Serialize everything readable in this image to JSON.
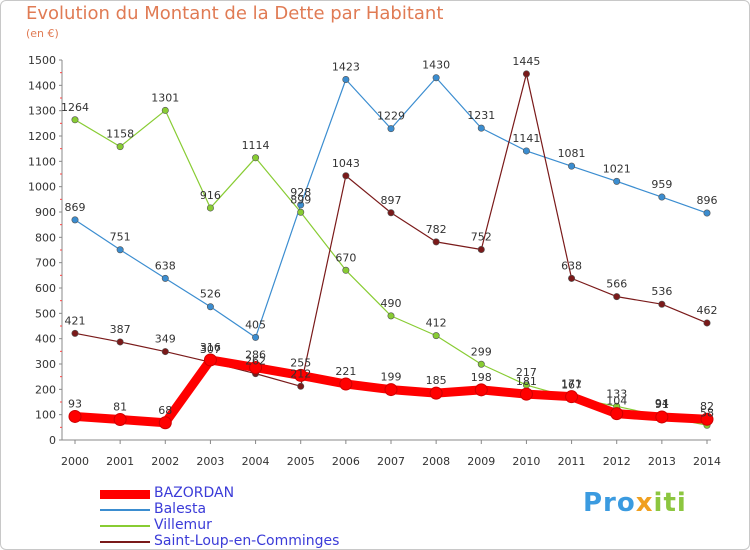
{
  "title": "Evolution du Montant de la Dette par Habitant",
  "subtitle": "(en €)",
  "logo": {
    "part1": "Pro",
    "part2": "x",
    "part3": "iti"
  },
  "chart_data": {
    "type": "line",
    "x": [
      "2000",
      "2001",
      "2002",
      "2003",
      "2004",
      "2005",
      "2006",
      "2007",
      "2008",
      "2009",
      "2010",
      "2011",
      "2012",
      "2013",
      "2014"
    ],
    "ylim": [
      0,
      1500
    ],
    "yticks": [
      0,
      100,
      200,
      300,
      400,
      500,
      600,
      700,
      800,
      900,
      1000,
      1100,
      1200,
      1300,
      1400,
      1500
    ],
    "grid": false,
    "legend_position": "bottom-left",
    "series": [
      {
        "name": "BAZORDAN",
        "color": "#ff0000",
        "values": [
          93,
          81,
          68,
          316,
          286,
          255,
          221,
          199,
          185,
          198,
          181,
          171,
          104,
          91,
          82
        ]
      },
      {
        "name": "Balesta",
        "color": "#3b8dd0",
        "values": [
          869,
          751,
          638,
          526,
          405,
          928,
          1423,
          1229,
          1430,
          1231,
          1141,
          1081,
          1021,
          959,
          896
        ]
      },
      {
        "name": "Villemur",
        "color": "#88cc33",
        "values": [
          1264,
          1158,
          1301,
          916,
          1114,
          899,
          670,
          490,
          412,
          299,
          217,
          167,
          133,
          94,
          58
        ]
      },
      {
        "name": "Saint-Loup-en-Comminges",
        "color": "#7a1a1a",
        "values": [
          421,
          387,
          349,
          307,
          262,
          212,
          1043,
          897,
          782,
          752,
          1445,
          638,
          566,
          536,
          462
        ]
      }
    ]
  }
}
